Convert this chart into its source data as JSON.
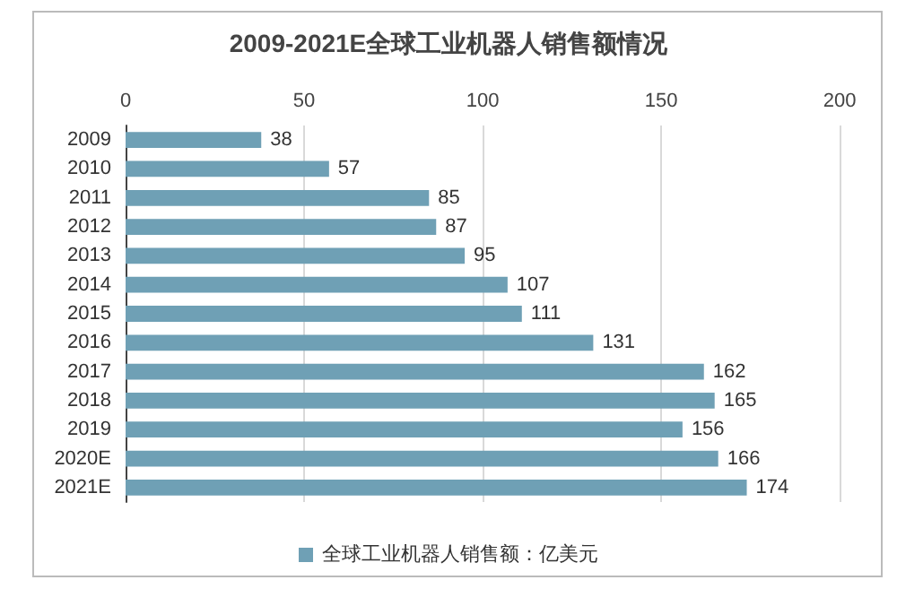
{
  "chart_data": {
    "type": "bar",
    "orientation": "horizontal",
    "title": "2009-2021E全球工业机器人销售额情况",
    "categories": [
      "2009",
      "2010",
      "2011",
      "2012",
      "2013",
      "2014",
      "2015",
      "2016",
      "2017",
      "2018",
      "2019",
      "2020E",
      "2021E"
    ],
    "series": [
      {
        "name": "全球工业机器人销售额：亿美元",
        "color": "#6fa0b5",
        "values": [
          38,
          57,
          85,
          87,
          95,
          107,
          111,
          131,
          162,
          165,
          156,
          166,
          174
        ]
      }
    ],
    "xlim": [
      0,
      200
    ],
    "xticks": [
      0,
      50,
      100,
      150,
      200
    ],
    "grid": "x",
    "legend": "bottom",
    "data_labels": true
  }
}
